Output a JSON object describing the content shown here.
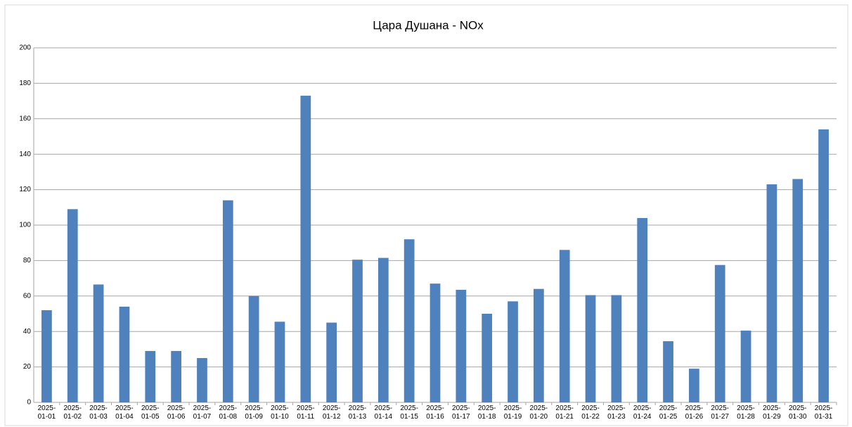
{
  "chart_data": {
    "type": "bar",
    "title": "Цара Душана - NOx",
    "categories": [
      "2025-01-01",
      "2025-01-02",
      "2025-01-03",
      "2025-01-04",
      "2025-01-05",
      "2025-01-06",
      "2025-01-07",
      "2025-01-08",
      "2025-01-09",
      "2025-01-10",
      "2025-01-11",
      "2025-01-12",
      "2025-01-13",
      "2025-01-14",
      "2025-01-15",
      "2025-01-16",
      "2025-01-17",
      "2025-01-18",
      "2025-01-19",
      "2025-01-20",
      "2025-01-21",
      "2025-01-22",
      "2025-01-23",
      "2025-01-24",
      "2025-01-25",
      "2025-01-26",
      "2025-01-27",
      "2025-01-28",
      "2025-01-29",
      "2025-01-30",
      "2025-01-31"
    ],
    "values": [
      52,
      109,
      66.5,
      54,
      29,
      29,
      25,
      114,
      60,
      45.5,
      173,
      45,
      80.5,
      81.5,
      92,
      67,
      63.5,
      50,
      57,
      64,
      86,
      60.5,
      60.5,
      104,
      34.5,
      19,
      77.5,
      40.5,
      123,
      126,
      154
    ],
    "color": "#4f81bd",
    "ylim": [
      0,
      200
    ],
    "yticks": [
      0,
      20,
      40,
      60,
      80,
      100,
      120,
      140,
      160,
      180,
      200
    ],
    "grid": true
  }
}
